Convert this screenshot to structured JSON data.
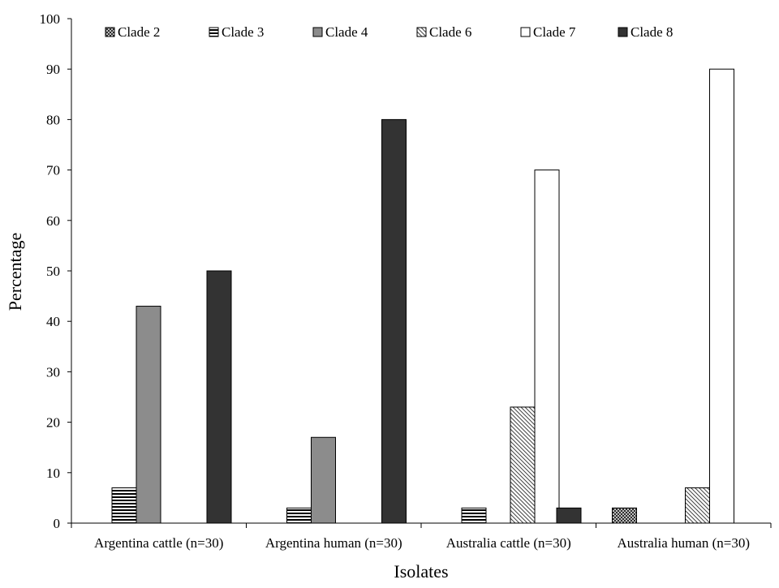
{
  "chart_data": {
    "type": "bar",
    "title": "",
    "xlabel": "Isolates",
    "ylabel": "Percentage",
    "ylim": [
      0,
      100
    ],
    "yticks": [
      0,
      10,
      20,
      30,
      40,
      50,
      60,
      70,
      80,
      90,
      100
    ],
    "grid": false,
    "legend_position": "top",
    "categories": [
      "Argentina cattle (n=30)",
      "Argentina human (n=30)",
      "Australia cattle (n=30)",
      "Australia human (n=30)"
    ],
    "series": [
      {
        "name": "Clade 2",
        "pattern": "crosshatch",
        "color": "#3a3a3a",
        "values": [
          0,
          0,
          0,
          3
        ]
      },
      {
        "name": "Clade 3",
        "pattern": "horizontal-lines",
        "color": "#000000",
        "values": [
          7,
          3,
          3,
          0
        ]
      },
      {
        "name": "Clade 4",
        "pattern": "solid",
        "color": "#8c8c8c",
        "values": [
          43,
          17,
          0,
          0
        ]
      },
      {
        "name": "Clade 6",
        "pattern": "diagonal-lines",
        "color": "#555555",
        "values": [
          0,
          0,
          23,
          7
        ]
      },
      {
        "name": "Clade 7",
        "pattern": "solid",
        "color": "#ffffff",
        "values": [
          0,
          0,
          70,
          90
        ]
      },
      {
        "name": "Clade 8",
        "pattern": "solid",
        "color": "#333333",
        "values": [
          50,
          80,
          3,
          0
        ]
      }
    ]
  }
}
